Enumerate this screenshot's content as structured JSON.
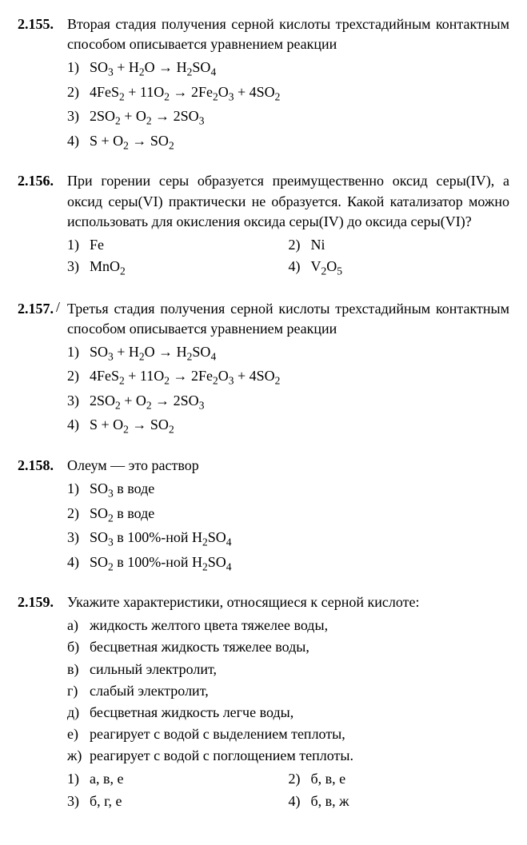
{
  "questions": [
    {
      "num": "2.155.",
      "text_html": "Вторая стадия получения серной кислоты трехстадийным контактным способом описывается уравнением реакции",
      "options_layout": "single",
      "options": [
        {
          "n": "1)",
          "html": "SO<sub>3</sub> + H<sub>2</sub>O → H<sub>2</sub>SO<sub>4</sub>"
        },
        {
          "n": "2)",
          "html": "4FeS<sub>2</sub> + 11O<sub>2</sub> → 2Fe<sub>2</sub>O<sub>3</sub> + 4SO<sub>2</sub>"
        },
        {
          "n": "3)",
          "html": "2SO<sub>2</sub> + O<sub>2</sub> → 2SO<sub>3</sub>"
        },
        {
          "n": "4)",
          "html": "S + O<sub>2</sub> → SO<sub>2</sub>"
        }
      ]
    },
    {
      "num": "2.156.",
      "text_html": "При горении серы образуется преимущественно оксид серы(IV), а оксид серы(VI) практически не образуется. Какой катализатор можно использовать для окисления оксида серы(IV) до оксида серы(VI)?",
      "options_layout": "grid",
      "options": [
        {
          "n": "1)",
          "html": "Fe"
        },
        {
          "n": "2)",
          "html": "Ni"
        },
        {
          "n": "3)",
          "html": "MnO<sub>2</sub>"
        },
        {
          "n": "4)",
          "html": "V<sub>2</sub>O<sub>5</sub>"
        }
      ]
    },
    {
      "num": "2.157.",
      "text_html": "Третья стадия получения серной кислоты трехстадийным контактным способом описывается уравнением реакции",
      "has_slash": true,
      "options_layout": "single",
      "options": [
        {
          "n": "1)",
          "html": "SO<sub>3</sub> + H<sub>2</sub>O → H<sub>2</sub>SO<sub>4</sub>"
        },
        {
          "n": "2)",
          "html": "4FeS<sub>2</sub> + 11O<sub>2</sub> → 2Fe<sub>2</sub>O<sub>3</sub> + 4SO<sub>2</sub>"
        },
        {
          "n": "3)",
          "html": "2SO<sub>2</sub> + O<sub>2</sub> → 2SO<sub>3</sub>"
        },
        {
          "n": "4)",
          "html": "S + O<sub>2</sub> → SO<sub>2</sub>"
        }
      ]
    },
    {
      "num": "2.158.",
      "text_html": "Олеум — это раствор",
      "options_layout": "single",
      "options": [
        {
          "n": "1)",
          "html": "SO<sub>3</sub> в воде"
        },
        {
          "n": "2)",
          "html": "SO<sub>2</sub> в воде"
        },
        {
          "n": "3)",
          "html": "SO<sub>3</sub> в 100%-ной H<sub>2</sub>SO<sub>4</sub>"
        },
        {
          "n": "4)",
          "html": "SO<sub>2</sub> в 100%-ной H<sub>2</sub>SO<sub>4</sub>"
        }
      ]
    },
    {
      "num": "2.159.",
      "text_html": "Укажите характеристики, относящиеся к серной кислоте:",
      "subitems": [
        {
          "l": "а)",
          "t": "жидкость желтого цвета тяжелее воды,"
        },
        {
          "l": "б)",
          "t": "бесцветная жидкость тяжелее воды,"
        },
        {
          "l": "в)",
          "t": "сильный электролит,"
        },
        {
          "l": "г)",
          "t": "слабый электролит,"
        },
        {
          "l": "д)",
          "t": "бесцветная жидкость легче воды,"
        },
        {
          "l": "е)",
          "t": "реагирует с водой с выделением теплоты,"
        },
        {
          "l": "ж)",
          "t": "реагирует с водой с поглощением теплоты."
        }
      ],
      "options_layout": "grid",
      "options": [
        {
          "n": "1)",
          "html": "а, в, е"
        },
        {
          "n": "2)",
          "html": "б, в, е"
        },
        {
          "n": "3)",
          "html": "б, г, е"
        },
        {
          "n": "4)",
          "html": "б, в, ж"
        }
      ]
    }
  ]
}
